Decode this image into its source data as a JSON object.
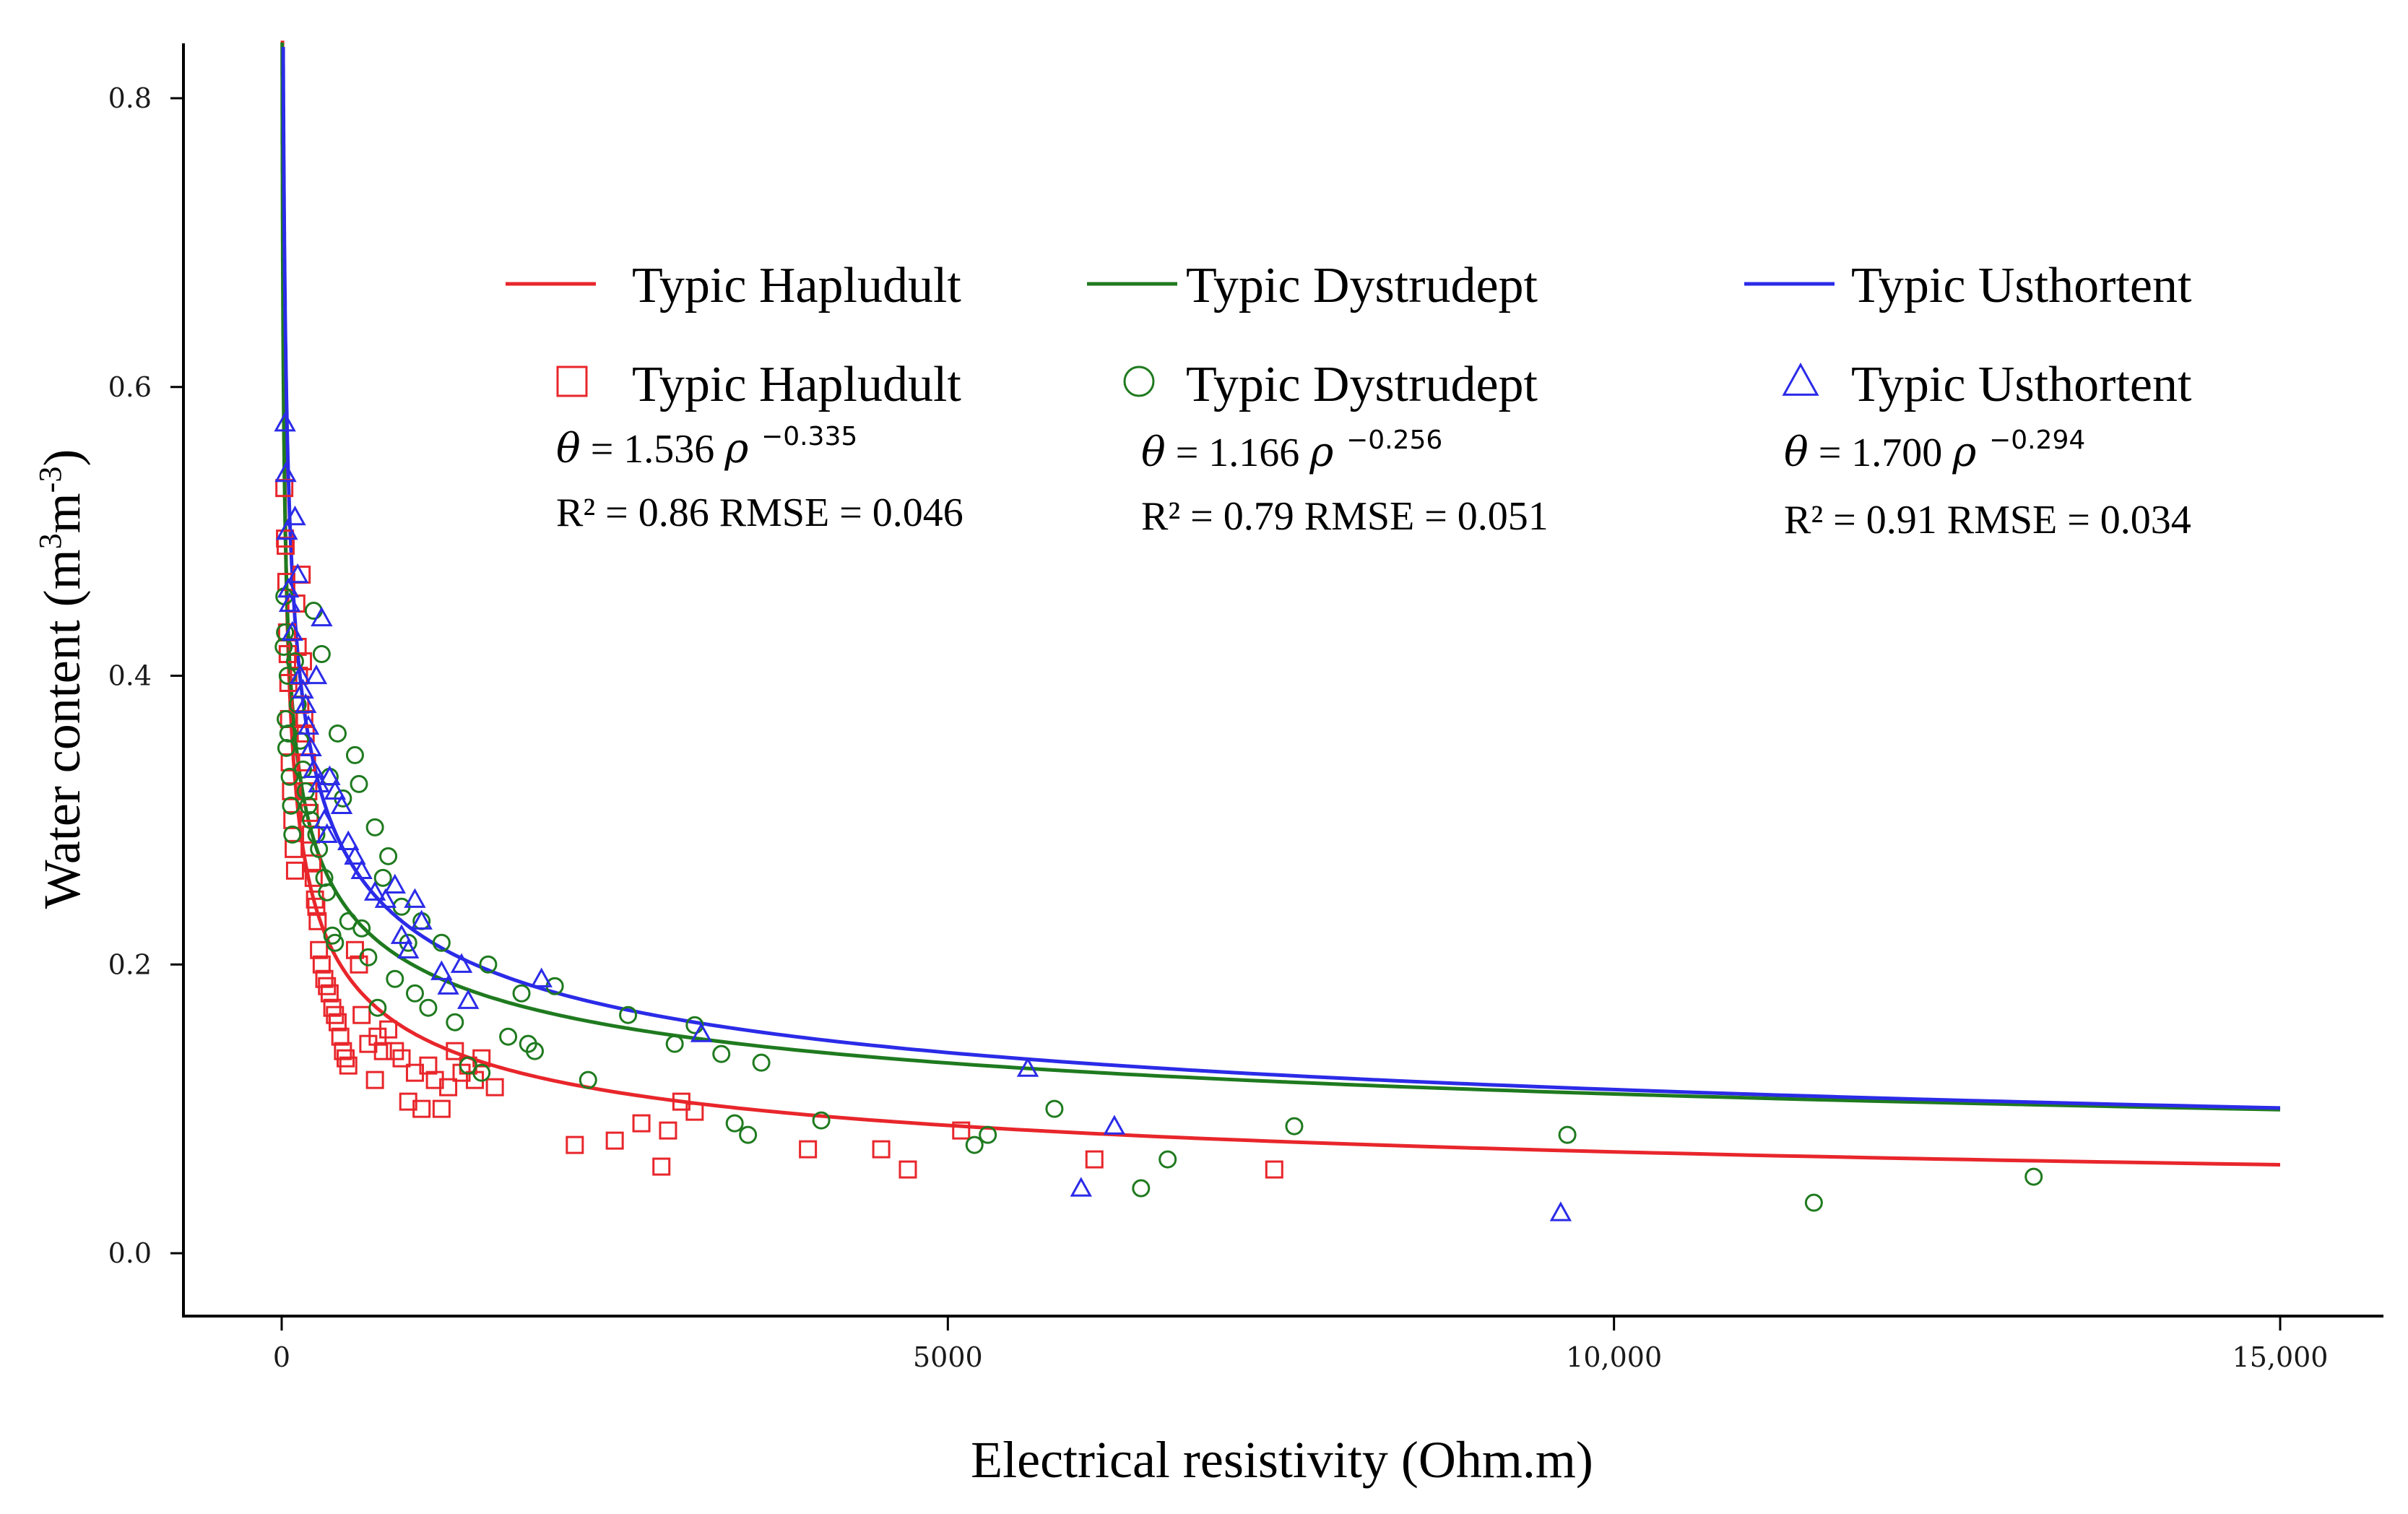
{
  "chart_data": {
    "type": "scatter",
    "title": "",
    "xlabel": "Electrical resistivity (Ohm.m)",
    "ylabel_parts": {
      "main": "Water content (m",
      "sup1": "3",
      "mid": "m",
      "sup2": "-3",
      "end": ")"
    },
    "xlim": [
      -750,
      15750
    ],
    "ylim": [
      -0.04,
      0.84
    ],
    "x_ticks": [
      0,
      5000,
      10000,
      15000
    ],
    "x_tick_labels": [
      "0",
      "5000",
      "10,000",
      "15,000"
    ],
    "y_ticks": [
      0.0,
      0.2,
      0.4,
      0.6,
      0.8
    ],
    "y_tick_labels": [
      "0.0",
      "0.2",
      "0.4",
      "0.6",
      "0.8"
    ],
    "grid": false,
    "legend_position": "top",
    "series": [
      {
        "name": "Typic Hapludult",
        "color": "#e8262b",
        "marker": "square",
        "fit": {
          "a": 1.536,
          "b": -0.335
        },
        "equation": {
          "symbol": "θ",
          "coef": "= 1.536",
          "var": "ρ",
          "exp": "−0.335"
        },
        "stats": "R² = 0.86 RMSE = 0.046",
        "points": [
          [
            20,
            0.53
          ],
          [
            25,
            0.495
          ],
          [
            30,
            0.49
          ],
          [
            35,
            0.465
          ],
          [
            40,
            0.43
          ],
          [
            45,
            0.415
          ],
          [
            50,
            0.395
          ],
          [
            55,
            0.37
          ],
          [
            60,
            0.34
          ],
          [
            70,
            0.32
          ],
          [
            80,
            0.3
          ],
          [
            90,
            0.28
          ],
          [
            100,
            0.265
          ],
          [
            110,
            0.45
          ],
          [
            120,
            0.42
          ],
          [
            130,
            0.4
          ],
          [
            140,
            0.38
          ],
          [
            150,
            0.47
          ],
          [
            160,
            0.41
          ],
          [
            170,
            0.37
          ],
          [
            180,
            0.36
          ],
          [
            190,
            0.34
          ],
          [
            200,
            0.32
          ],
          [
            210,
            0.305
          ],
          [
            220,
            0.29
          ],
          [
            230,
            0.27
          ],
          [
            240,
            0.26
          ],
          [
            250,
            0.245
          ],
          [
            260,
            0.24
          ],
          [
            270,
            0.23
          ],
          [
            280,
            0.21
          ],
          [
            300,
            0.2
          ],
          [
            320,
            0.19
          ],
          [
            340,
            0.185
          ],
          [
            360,
            0.18
          ],
          [
            380,
            0.17
          ],
          [
            400,
            0.165
          ],
          [
            420,
            0.16
          ],
          [
            440,
            0.15
          ],
          [
            460,
            0.14
          ],
          [
            480,
            0.135
          ],
          [
            500,
            0.13
          ],
          [
            550,
            0.21
          ],
          [
            580,
            0.2
          ],
          [
            600,
            0.165
          ],
          [
            650,
            0.145
          ],
          [
            700,
            0.12
          ],
          [
            720,
            0.15
          ],
          [
            760,
            0.14
          ],
          [
            800,
            0.155
          ],
          [
            850,
            0.14
          ],
          [
            900,
            0.135
          ],
          [
            950,
            0.105
          ],
          [
            1000,
            0.125
          ],
          [
            1050,
            0.1
          ],
          [
            1100,
            0.13
          ],
          [
            1150,
            0.12
          ],
          [
            1200,
            0.1
          ],
          [
            1250,
            0.115
          ],
          [
            1300,
            0.14
          ],
          [
            1350,
            0.125
          ],
          [
            1400,
            0.13
          ],
          [
            1450,
            0.12
          ],
          [
            1500,
            0.135
          ],
          [
            1600,
            0.115
          ],
          [
            2200,
            0.075
          ],
          [
            2500,
            0.078
          ],
          [
            2700,
            0.09
          ],
          [
            2850,
            0.06
          ],
          [
            2900,
            0.085
          ],
          [
            3000,
            0.105
          ],
          [
            3100,
            0.098
          ],
          [
            3950,
            0.072
          ],
          [
            4500,
            0.072
          ],
          [
            4700,
            0.058
          ],
          [
            5100,
            0.085
          ],
          [
            6100,
            0.065
          ],
          [
            7450,
            0.058
          ]
        ]
      },
      {
        "name": "Typic Dystrudept",
        "color": "#1f7a1f",
        "marker": "circle",
        "fit": {
          "a": 1.166,
          "b": -0.256
        },
        "equation": {
          "symbol": "θ",
          "coef": "= 1.166",
          "var": "ρ",
          "exp": "−0.256"
        },
        "stats": "R² = 0.79 RMSE = 0.051",
        "points": [
          [
            15,
            0.42
          ],
          [
            20,
            0.455
          ],
          [
            25,
            0.43
          ],
          [
            30,
            0.37
          ],
          [
            35,
            0.35
          ],
          [
            45,
            0.4
          ],
          [
            50,
            0.36
          ],
          [
            60,
            0.33
          ],
          [
            70,
            0.31
          ],
          [
            80,
            0.29
          ],
          [
            100,
            0.41
          ],
          [
            120,
            0.38
          ],
          [
            140,
            0.355
          ],
          [
            160,
            0.335
          ],
          [
            180,
            0.32
          ],
          [
            200,
            0.31
          ],
          [
            220,
            0.3
          ],
          [
            240,
            0.445
          ],
          [
            260,
            0.29
          ],
          [
            280,
            0.28
          ],
          [
            300,
            0.415
          ],
          [
            320,
            0.26
          ],
          [
            340,
            0.25
          ],
          [
            360,
            0.33
          ],
          [
            380,
            0.22
          ],
          [
            400,
            0.215
          ],
          [
            420,
            0.36
          ],
          [
            460,
            0.315
          ],
          [
            500,
            0.23
          ],
          [
            550,
            0.345
          ],
          [
            580,
            0.325
          ],
          [
            600,
            0.225
          ],
          [
            650,
            0.205
          ],
          [
            700,
            0.295
          ],
          [
            720,
            0.17
          ],
          [
            760,
            0.26
          ],
          [
            800,
            0.275
          ],
          [
            850,
            0.19
          ],
          [
            900,
            0.24
          ],
          [
            950,
            0.215
          ],
          [
            1000,
            0.18
          ],
          [
            1050,
            0.23
          ],
          [
            1100,
            0.17
          ],
          [
            1200,
            0.215
          ],
          [
            1300,
            0.16
          ],
          [
            1400,
            0.13
          ],
          [
            1500,
            0.125
          ],
          [
            1550,
            0.2
          ],
          [
            1700,
            0.15
          ],
          [
            1800,
            0.18
          ],
          [
            1850,
            0.145
          ],
          [
            1900,
            0.14
          ],
          [
            2050,
            0.185
          ],
          [
            2300,
            0.12
          ],
          [
            2600,
            0.165
          ],
          [
            2950,
            0.145
          ],
          [
            3100,
            0.158
          ],
          [
            3300,
            0.138
          ],
          [
            3400,
            0.09
          ],
          [
            3500,
            0.082
          ],
          [
            3600,
            0.132
          ],
          [
            4050,
            0.092
          ],
          [
            5200,
            0.075
          ],
          [
            5300,
            0.082
          ],
          [
            5800,
            0.1
          ],
          [
            6450,
            0.045
          ],
          [
            6650,
            0.065
          ],
          [
            7600,
            0.088
          ],
          [
            9650,
            0.082
          ],
          [
            11500,
            0.035
          ],
          [
            13150,
            0.053
          ]
        ]
      },
      {
        "name": "Typic Usthortent",
        "color": "#2b2be8",
        "marker": "triangle",
        "fit": {
          "a": 1.7,
          "b": -0.294
        },
        "equation": {
          "symbol": "θ",
          "coef": "= 1.700",
          "var": "ρ",
          "exp": "−0.294"
        },
        "stats": "R² = 0.91 RMSE = 0.034",
        "points": [
          [
            25,
            0.575
          ],
          [
            30,
            0.54
          ],
          [
            40,
            0.5
          ],
          [
            50,
            0.46
          ],
          [
            60,
            0.45
          ],
          [
            80,
            0.43
          ],
          [
            100,
            0.51
          ],
          [
            120,
            0.47
          ],
          [
            140,
            0.4
          ],
          [
            160,
            0.39
          ],
          [
            180,
            0.38
          ],
          [
            200,
            0.365
          ],
          [
            220,
            0.35
          ],
          [
            240,
            0.335
          ],
          [
            260,
            0.4
          ],
          [
            280,
            0.325
          ],
          [
            300,
            0.44
          ],
          [
            320,
            0.3
          ],
          [
            340,
            0.29
          ],
          [
            360,
            0.33
          ],
          [
            400,
            0.32
          ],
          [
            450,
            0.31
          ],
          [
            500,
            0.285
          ],
          [
            550,
            0.275
          ],
          [
            600,
            0.265
          ],
          [
            700,
            0.25
          ],
          [
            780,
            0.245
          ],
          [
            850,
            0.255
          ],
          [
            900,
            0.22
          ],
          [
            950,
            0.21
          ],
          [
            1000,
            0.245
          ],
          [
            1050,
            0.23
          ],
          [
            1200,
            0.195
          ],
          [
            1250,
            0.185
          ],
          [
            1350,
            0.2
          ],
          [
            1400,
            0.175
          ],
          [
            1950,
            0.19
          ],
          [
            3150,
            0.152
          ],
          [
            5600,
            0.128
          ],
          [
            6000,
            0.045
          ],
          [
            6250,
            0.088
          ],
          [
            9600,
            0.028
          ]
        ]
      }
    ]
  }
}
